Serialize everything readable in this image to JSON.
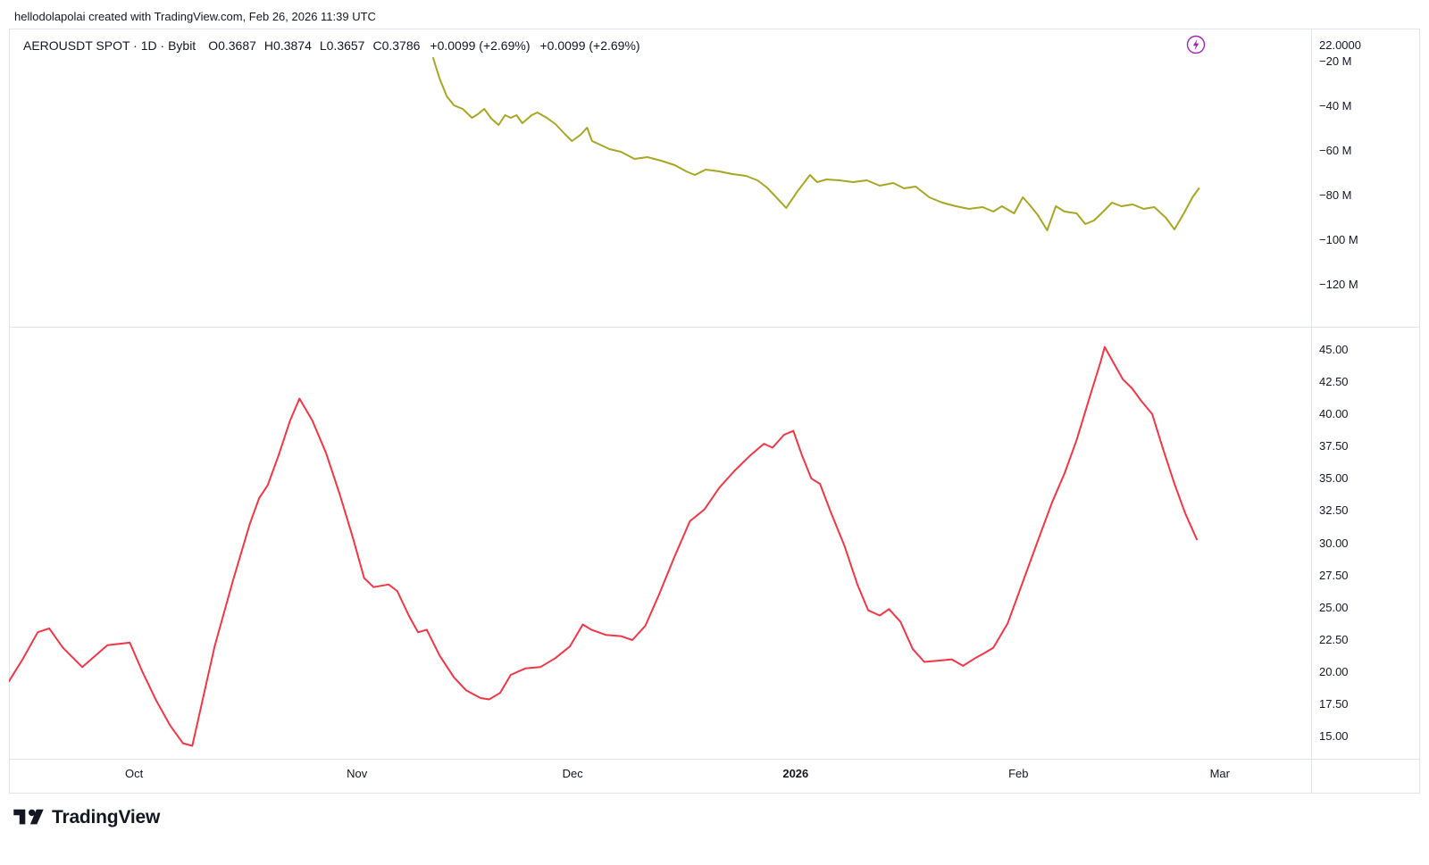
{
  "attribution": "hellodolapolai created with TradingView.com, Feb 26, 2026 11:39 UTC",
  "header": {
    "symbol_title": "AEROUSDT SPOT · 1D · Bybit",
    "values": [
      "O0.3687",
      "H0.3874",
      "L0.3657",
      "C0.3786",
      "+0.0099 (+2.69%)",
      "+0.0099 (+2.69%)"
    ],
    "price_scale_value": "22.0000"
  },
  "colors": {
    "accent_purple": "#9c27b0",
    "line_olive": "#a7a622",
    "line_red": "#f23645",
    "border": "#e0e3eb",
    "text": "#131722"
  },
  "chart_data": [
    {
      "type": "line",
      "name": "upper-indicator-line",
      "color": "#a7a622",
      "x_unit": "days since Oct 1 2025",
      "xlim": [
        -17.4,
        163.7
      ],
      "ylim": [
        -138.8,
        -5.6
      ],
      "ylabel": "millions",
      "grid": false,
      "legend_position": "none",
      "y_ticks": [
        {
          "v": -20,
          "label": "−20 M"
        },
        {
          "v": -40,
          "label": "−40 M"
        },
        {
          "v": -60,
          "label": "−60 M"
        },
        {
          "v": -80,
          "label": "−80 M"
        },
        {
          "v": -100,
          "label": "−100 M"
        },
        {
          "v": -120,
          "label": "−120 M"
        }
      ],
      "x_ticks": [
        {
          "d": 0,
          "label": "Oct"
        },
        {
          "d": 31,
          "label": "Nov"
        },
        {
          "d": 61,
          "label": "Dec"
        },
        {
          "d": 92,
          "label": "2026",
          "bold": true
        },
        {
          "d": 123,
          "label": "Feb"
        },
        {
          "d": 151,
          "label": "Mar"
        }
      ],
      "points": [
        [
          41.6,
          -18.4
        ],
        [
          42.5,
          -27.6
        ],
        [
          43.5,
          -35.6
        ],
        [
          44.5,
          -39.6
        ],
        [
          45.7,
          -41.2
        ],
        [
          47.0,
          -45.2
        ],
        [
          47.8,
          -43.6
        ],
        [
          48.7,
          -41.2
        ],
        [
          49.7,
          -45.6
        ],
        [
          50.7,
          -48.4
        ],
        [
          51.6,
          -44.0
        ],
        [
          52.4,
          -45.2
        ],
        [
          53.2,
          -44.0
        ],
        [
          54.0,
          -47.6
        ],
        [
          55.3,
          -44.0
        ],
        [
          56.1,
          -42.8
        ],
        [
          57.4,
          -45.2
        ],
        [
          58.6,
          -48.0
        ],
        [
          59.9,
          -52.4
        ],
        [
          60.9,
          -55.6
        ],
        [
          62.1,
          -52.8
        ],
        [
          63.0,
          -49.6
        ],
        [
          63.7,
          -55.6
        ],
        [
          64.8,
          -57.2
        ],
        [
          66.1,
          -59.2
        ],
        [
          67.7,
          -60.4
        ],
        [
          69.6,
          -63.6
        ],
        [
          71.4,
          -62.8
        ],
        [
          73.3,
          -64.4
        ],
        [
          75.2,
          -66.4
        ],
        [
          76.8,
          -69.2
        ],
        [
          78.0,
          -70.8
        ],
        [
          79.5,
          -68.4
        ],
        [
          81.4,
          -69.2
        ],
        [
          83.2,
          -70.4
        ],
        [
          85.1,
          -71.2
        ],
        [
          86.7,
          -73.2
        ],
        [
          88.0,
          -76.4
        ],
        [
          89.2,
          -80.4
        ],
        [
          90.7,
          -85.6
        ],
        [
          92.2,
          -78.4
        ],
        [
          94.0,
          -70.8
        ],
        [
          95.0,
          -74.0
        ],
        [
          96.3,
          -72.8
        ],
        [
          98.1,
          -73.2
        ],
        [
          100.0,
          -74.0
        ],
        [
          101.9,
          -73.2
        ],
        [
          103.7,
          -75.6
        ],
        [
          105.6,
          -74.4
        ],
        [
          107.1,
          -76.8
        ],
        [
          108.7,
          -76.0
        ],
        [
          110.6,
          -80.8
        ],
        [
          112.4,
          -83.2
        ],
        [
          114.3,
          -84.8
        ],
        [
          116.1,
          -86.0
        ],
        [
          118.0,
          -85.2
        ],
        [
          119.5,
          -87.2
        ],
        [
          120.7,
          -84.8
        ],
        [
          122.4,
          -88.0
        ],
        [
          123.6,
          -80.8
        ],
        [
          124.5,
          -84.0
        ],
        [
          125.7,
          -88.8
        ],
        [
          127.0,
          -95.6
        ],
        [
          128.2,
          -84.8
        ],
        [
          129.4,
          -87.2
        ],
        [
          131.1,
          -88.0
        ],
        [
          132.3,
          -92.8
        ],
        [
          133.5,
          -91.2
        ],
        [
          134.8,
          -87.2
        ],
        [
          136.0,
          -83.2
        ],
        [
          137.3,
          -84.8
        ],
        [
          138.9,
          -84.0
        ],
        [
          140.4,
          -86.0
        ],
        [
          141.9,
          -85.2
        ],
        [
          143.5,
          -90.0
        ],
        [
          144.7,
          -95.2
        ],
        [
          146.0,
          -88.0
        ],
        [
          147.2,
          -80.8
        ],
        [
          148.1,
          -76.8
        ]
      ]
    },
    {
      "type": "line",
      "name": "lower-oscillator-line",
      "color": "#f23645",
      "x_unit": "days since Oct 1 2025",
      "xlim": [
        -17.4,
        163.7
      ],
      "ylim": [
        13.3,
        46.7
      ],
      "grid": false,
      "legend_position": "none",
      "y_ticks": [
        {
          "v": 45,
          "label": "45.00"
        },
        {
          "v": 42.5,
          "label": "42.50"
        },
        {
          "v": 40,
          "label": "40.00"
        },
        {
          "v": 37.5,
          "label": "37.50"
        },
        {
          "v": 35,
          "label": "35.00"
        },
        {
          "v": 32.5,
          "label": "32.50"
        },
        {
          "v": 30,
          "label": "30.00"
        },
        {
          "v": 27.5,
          "label": "27.50"
        },
        {
          "v": 25,
          "label": "25.00"
        },
        {
          "v": 22.5,
          "label": "22.50"
        },
        {
          "v": 20,
          "label": "20.00"
        },
        {
          "v": 17.5,
          "label": "17.50"
        },
        {
          "v": 15,
          "label": "15.00"
        }
      ],
      "points": [
        [
          -17.4,
          19.3
        ],
        [
          -15.5,
          21.0
        ],
        [
          -13.4,
          23.1
        ],
        [
          -11.8,
          23.4
        ],
        [
          -9.9,
          21.9
        ],
        [
          -7.2,
          20.4
        ],
        [
          -3.7,
          22.1
        ],
        [
          -0.6,
          22.3
        ],
        [
          1.2,
          20.0
        ],
        [
          3.1,
          17.8
        ],
        [
          5.0,
          15.9
        ],
        [
          6.8,
          14.5
        ],
        [
          8.1,
          14.3
        ],
        [
          11.2,
          22.0
        ],
        [
          13.7,
          27.0
        ],
        [
          16.1,
          31.5
        ],
        [
          17.4,
          33.5
        ],
        [
          18.6,
          34.5
        ],
        [
          20.1,
          36.8
        ],
        [
          21.7,
          39.5
        ],
        [
          23.0,
          41.2
        ],
        [
          24.8,
          39.5
        ],
        [
          26.7,
          37.0
        ],
        [
          28.6,
          33.8
        ],
        [
          30.4,
          30.5
        ],
        [
          32.0,
          27.3
        ],
        [
          33.3,
          26.6
        ],
        [
          35.4,
          26.8
        ],
        [
          36.6,
          26.3
        ],
        [
          38.3,
          24.3
        ],
        [
          39.5,
          23.1
        ],
        [
          40.7,
          23.3
        ],
        [
          42.5,
          21.3
        ],
        [
          44.5,
          19.6
        ],
        [
          46.2,
          18.6
        ],
        [
          48.2,
          18.0
        ],
        [
          49.4,
          17.9
        ],
        [
          50.9,
          18.4
        ],
        [
          52.4,
          19.8
        ],
        [
          54.4,
          20.3
        ],
        [
          56.5,
          20.4
        ],
        [
          58.6,
          21.1
        ],
        [
          60.6,
          22.0
        ],
        [
          62.4,
          23.7
        ],
        [
          63.6,
          23.3
        ],
        [
          65.6,
          22.9
        ],
        [
          67.7,
          22.8
        ],
        [
          69.3,
          22.5
        ],
        [
          71.1,
          23.6
        ],
        [
          73.0,
          26.0
        ],
        [
          75.2,
          29.0
        ],
        [
          77.3,
          31.7
        ],
        [
          79.3,
          32.6
        ],
        [
          81.4,
          34.3
        ],
        [
          83.5,
          35.6
        ],
        [
          85.7,
          36.8
        ],
        [
          87.6,
          37.7
        ],
        [
          88.8,
          37.4
        ],
        [
          90.4,
          38.4
        ],
        [
          91.7,
          38.7
        ],
        [
          92.9,
          36.8
        ],
        [
          94.2,
          35.0
        ],
        [
          95.4,
          34.6
        ],
        [
          96.9,
          32.4
        ],
        [
          98.8,
          29.8
        ],
        [
          100.6,
          26.8
        ],
        [
          102.1,
          24.8
        ],
        [
          103.7,
          24.4
        ],
        [
          105.0,
          24.9
        ],
        [
          106.6,
          23.9
        ],
        [
          108.3,
          21.8
        ],
        [
          109.9,
          20.8
        ],
        [
          111.8,
          20.9
        ],
        [
          113.7,
          21.0
        ],
        [
          115.3,
          20.5
        ],
        [
          117.0,
          21.1
        ],
        [
          118.3,
          21.5
        ],
        [
          119.5,
          21.9
        ],
        [
          121.5,
          23.8
        ],
        [
          123.6,
          27.0
        ],
        [
          125.7,
          30.2
        ],
        [
          127.7,
          33.2
        ],
        [
          129.4,
          35.4
        ],
        [
          131.1,
          38.0
        ],
        [
          132.9,
          41.3
        ],
        [
          134.4,
          44.0
        ],
        [
          135.0,
          45.2
        ],
        [
          136.3,
          43.9
        ],
        [
          137.5,
          42.7
        ],
        [
          138.8,
          42.0
        ],
        [
          140.1,
          41.0
        ],
        [
          141.6,
          40.0
        ],
        [
          143.1,
          37.3
        ],
        [
          144.7,
          34.6
        ],
        [
          146.2,
          32.3
        ],
        [
          147.8,
          30.3
        ]
      ]
    }
  ],
  "footer": {
    "logo_text": "TradingView"
  }
}
